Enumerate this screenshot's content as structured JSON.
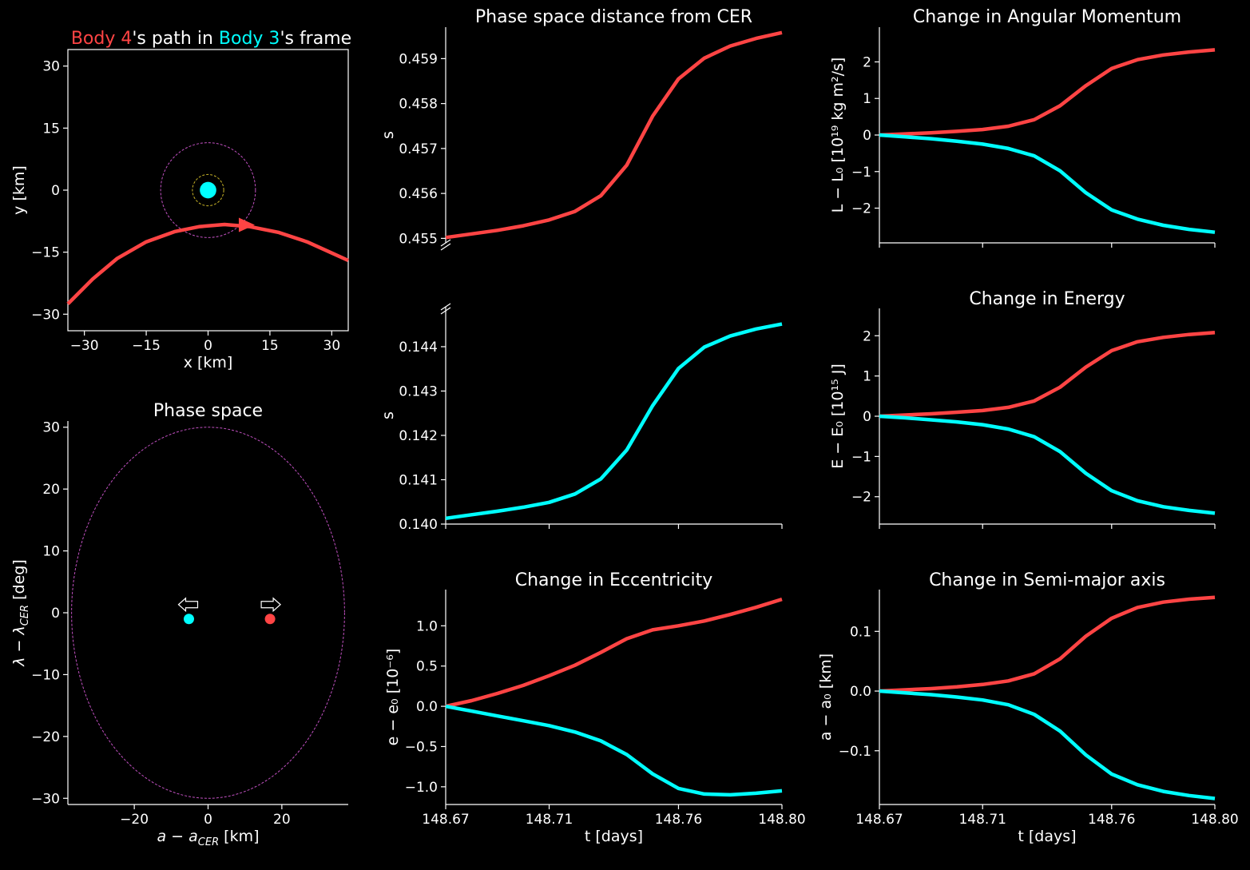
{
  "colors": {
    "body4": "#ff4444",
    "body3": "#00ffff",
    "circle_outer": "#c050c0",
    "circle_inner": "#c8b428",
    "ellipse": "#c050c0",
    "background": "#000000",
    "text": "#ffffff"
  },
  "chart_data": [
    {
      "id": "path",
      "type": "line",
      "title_parts": [
        "Body 4",
        "'s path in ",
        "Body 3",
        "'s frame"
      ],
      "xlabel": "x [km]",
      "ylabel": "y [km]",
      "xlim": [
        -34,
        34
      ],
      "ylim": [
        -34,
        34
      ],
      "xticks": [
        -30,
        -15,
        0,
        15,
        30
      ],
      "yticks": [
        30,
        15,
        0,
        -15,
        -30
      ],
      "series": [
        {
          "color": "#ff4444",
          "x": [
            -34,
            -28,
            -22,
            -15,
            -8,
            -2,
            4,
            10,
            17,
            24,
            30,
            34
          ],
          "y": [
            -27.5,
            -21.5,
            -16.5,
            -12.5,
            -10.0,
            -8.8,
            -8.3,
            -8.8,
            -10.2,
            -12.5,
            -15.2,
            -17.0
          ]
        }
      ],
      "body3": {
        "x": 0,
        "y": 0,
        "radius": 2.0
      },
      "circles": [
        {
          "r": 11.5,
          "color": "#c050c0"
        },
        {
          "r": 3.8,
          "color": "#c8b428"
        }
      ],
      "arrow": {
        "x": 9,
        "y": -8.4
      }
    },
    {
      "id": "phase",
      "type": "scatter",
      "title": "Phase space",
      "xlabel": "a − a_CER [km]",
      "ylabel": "λ − λ_CER [deg]",
      "xlim": [
        -38,
        38
      ],
      "ylim": [
        -31,
        31
      ],
      "xticks": [
        -20,
        0,
        20
      ],
      "yticks": [
        30,
        20,
        10,
        0,
        -10,
        -20,
        -30
      ],
      "ellipse": {
        "a": 37,
        "b": 30,
        "color": "#c050c0"
      },
      "points": [
        {
          "x": -5.2,
          "y": -1.0,
          "color": "#00ffff",
          "arrow": "left"
        },
        {
          "x": 16.8,
          "y": -1.0,
          "color": "#ff4444",
          "arrow": "right"
        }
      ]
    },
    {
      "id": "dist4",
      "type": "line",
      "title": "Phase space distance from CER",
      "ylabel": "s",
      "xlim": [
        148.67,
        148.8
      ],
      "ylim": [
        0.4549,
        0.4597
      ],
      "yticks": [
        0.459,
        0.458,
        0.457,
        0.456,
        0.455
      ],
      "ytick_labels": [
        "0.459",
        "0.458",
        "0.457",
        "0.456",
        "0.455"
      ],
      "series": [
        {
          "color": "#ff4444",
          "y": [
            0.45502,
            0.4551,
            0.45518,
            0.45528,
            0.45541,
            0.4556,
            0.45595,
            0.45663,
            0.45772,
            0.45855,
            0.45901,
            0.45928,
            0.45945,
            0.45958
          ]
        }
      ]
    },
    {
      "id": "dist3",
      "type": "line",
      "ylabel": "s",
      "xlim": [
        148.67,
        148.8
      ],
      "ylim": [
        0.14,
        0.1449
      ],
      "yticks": [
        0.144,
        0.143,
        0.142,
        0.141,
        0.14
      ],
      "ytick_labels": [
        "0.144",
        "0.143",
        "0.142",
        "0.141",
        "0.140"
      ],
      "series": [
        {
          "color": "#00ffff",
          "y": [
            0.14013,
            0.14021,
            0.14029,
            0.14038,
            0.14049,
            0.14068,
            0.14102,
            0.14167,
            0.14267,
            0.14351,
            0.14399,
            0.14424,
            0.1444,
            0.14451
          ]
        }
      ]
    },
    {
      "id": "ecc",
      "type": "line",
      "title": "Change in Eccentricity",
      "xlabel": "t [days]",
      "ylabel": "e − e₀ [10⁻⁶]",
      "xlim": [
        148.67,
        148.8
      ],
      "ylim": [
        -1.22,
        1.45
      ],
      "yticks": [
        1.0,
        0.5,
        0.0,
        -0.5,
        -1.0
      ],
      "ytick_labels": [
        "1.0",
        "0.5",
        "0.0",
        "−0.5",
        "−1.0"
      ],
      "xticks": [
        148.67,
        148.71,
        148.76,
        148.8
      ],
      "xtick_labels": [
        "148.67",
        "148.71",
        "148.76",
        "148.80"
      ],
      "series": [
        {
          "color": "#ff4444",
          "y": [
            0.0,
            0.07,
            0.16,
            0.26,
            0.38,
            0.51,
            0.67,
            0.84,
            0.95,
            1.0,
            1.06,
            1.14,
            1.23,
            1.33
          ]
        },
        {
          "color": "#00ffff",
          "y": [
            0.0,
            -0.06,
            -0.12,
            -0.18,
            -0.24,
            -0.32,
            -0.43,
            -0.6,
            -0.84,
            -1.02,
            -1.09,
            -1.1,
            -1.08,
            -1.05
          ]
        }
      ]
    },
    {
      "id": "L",
      "type": "line",
      "title": "Change in Angular Momentum",
      "ylabel": "L − L₀ [10¹⁹ kg m²/s]",
      "xlim": [
        148.67,
        148.8
      ],
      "ylim": [
        -2.95,
        2.95
      ],
      "yticks": [
        2,
        1,
        0,
        -1,
        -2
      ],
      "ytick_labels": [
        "2",
        "1",
        "0",
        "−1",
        "−2"
      ],
      "series": [
        {
          "color": "#ff4444",
          "y": [
            0.0,
            0.03,
            0.06,
            0.1,
            0.15,
            0.24,
            0.42,
            0.8,
            1.35,
            1.82,
            2.06,
            2.19,
            2.27,
            2.33
          ]
        },
        {
          "color": "#00ffff",
          "y": [
            0.0,
            -0.05,
            -0.1,
            -0.17,
            -0.25,
            -0.37,
            -0.57,
            -0.98,
            -1.58,
            -2.05,
            -2.3,
            -2.47,
            -2.58,
            -2.66
          ]
        }
      ]
    },
    {
      "id": "E",
      "type": "line",
      "title": "Change in Energy",
      "ylabel": "E − E₀ [10¹⁵ J]",
      "xlim": [
        148.67,
        148.8
      ],
      "ylim": [
        -2.68,
        2.68
      ],
      "yticks": [
        2,
        1,
        0,
        -1,
        -2
      ],
      "ytick_labels": [
        "2",
        "1",
        "0",
        "−1",
        "−2"
      ],
      "series": [
        {
          "color": "#ff4444",
          "y": [
            0.0,
            0.03,
            0.06,
            0.1,
            0.14,
            0.22,
            0.38,
            0.72,
            1.22,
            1.63,
            1.85,
            1.96,
            2.03,
            2.08
          ]
        },
        {
          "color": "#00ffff",
          "y": [
            0.0,
            -0.04,
            -0.09,
            -0.14,
            -0.21,
            -0.32,
            -0.51,
            -0.88,
            -1.42,
            -1.85,
            -2.1,
            -2.25,
            -2.34,
            -2.41
          ]
        }
      ]
    },
    {
      "id": "a",
      "type": "line",
      "title": "Change in Semi-major axis",
      "xlabel": "t [days]",
      "ylabel": "a − a₀ [km]",
      "xlim": [
        148.67,
        148.8
      ],
      "ylim": [
        -0.19,
        0.17
      ],
      "yticks": [
        0.1,
        0.0,
        -0.1
      ],
      "ytick_labels": [
        "0.1",
        "0.0",
        "−0.1"
      ],
      "xticks": [
        148.67,
        148.71,
        148.76,
        148.8
      ],
      "xtick_labels": [
        "148.67",
        "148.71",
        "148.76",
        "148.80"
      ],
      "series": [
        {
          "color": "#ff4444",
          "y": [
            0.0,
            0.002,
            0.004,
            0.007,
            0.011,
            0.017,
            0.029,
            0.054,
            0.092,
            0.122,
            0.14,
            0.149,
            0.154,
            0.157
          ]
        },
        {
          "color": "#00ffff",
          "y": [
            0.0,
            -0.003,
            -0.006,
            -0.01,
            -0.015,
            -0.023,
            -0.039,
            -0.067,
            -0.107,
            -0.139,
            -0.157,
            -0.168,
            -0.175,
            -0.18
          ]
        }
      ]
    }
  ]
}
